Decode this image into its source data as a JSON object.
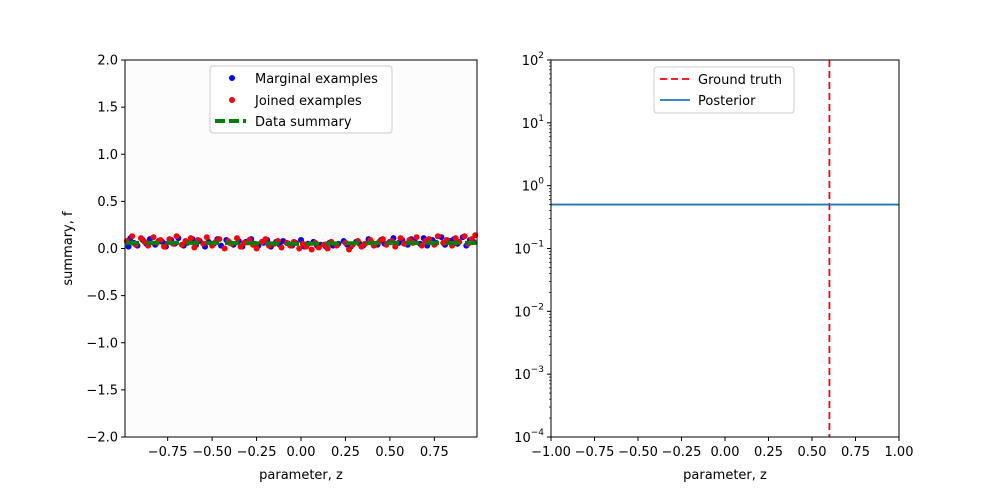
{
  "chart_data": [
    {
      "type": "scatter",
      "xlabel": "parameter, z",
      "ylabel": "summary, f",
      "xlim": [
        -0.99,
        0.99
      ],
      "ylim": [
        -2.0,
        2.0
      ],
      "x_ticks": [
        -0.75,
        -0.5,
        -0.25,
        0.0,
        0.25,
        0.5,
        0.75
      ],
      "x_tick_labels": [
        "−0.75",
        "−0.50",
        "−0.25",
        "0.00",
        "0.25",
        "0.50",
        "0.75"
      ],
      "y_ticks": [
        2.0,
        1.5,
        1.0,
        0.5,
        0.0,
        -0.5,
        -1.0,
        -1.5,
        -2.0
      ],
      "y_tick_labels": [
        "2.0",
        "1.5",
        "1.0",
        "0.5",
        "0.0",
        "−0.5",
        "−1.0",
        "−1.5",
        "−2.0"
      ],
      "grid": false,
      "legend_placement": "upper center",
      "series": [
        {
          "name": "Marginal examples",
          "kind": "points",
          "color": "#0000ff",
          "x": [
            -0.97,
            -0.96,
            -0.94,
            -0.92,
            -0.89,
            -0.87,
            -0.85,
            -0.82,
            -0.8,
            -0.78,
            -0.76,
            -0.73,
            -0.71,
            -0.69,
            -0.66,
            -0.64,
            -0.61,
            -0.59,
            -0.57,
            -0.54,
            -0.52,
            -0.49,
            -0.47,
            -0.45,
            -0.42,
            -0.4,
            -0.38,
            -0.35,
            -0.33,
            -0.31,
            -0.28,
            -0.26,
            -0.24,
            -0.21,
            -0.19,
            -0.17,
            -0.14,
            -0.12,
            -0.1,
            -0.07,
            -0.05,
            -0.03,
            0.0,
            0.02,
            0.04,
            0.07,
            0.09,
            0.11,
            0.14,
            0.16,
            0.18,
            0.21,
            0.24,
            0.26,
            0.28,
            0.31,
            0.33,
            0.35,
            0.38,
            0.4,
            0.43,
            0.45,
            0.47,
            0.5,
            0.52,
            0.55,
            0.57,
            0.6,
            0.62,
            0.64,
            0.67,
            0.69,
            0.71,
            0.74,
            0.76,
            0.79,
            0.81,
            0.84,
            0.86,
            0.88,
            0.91,
            0.93,
            0.95,
            0.97
          ],
          "y": [
            0.02,
            0.11,
            0.06,
            0.03,
            0.09,
            0.05,
            0.1,
            0.04,
            0.08,
            0.07,
            0.02,
            0.09,
            0.05,
            0.11,
            0.03,
            0.06,
            0.1,
            0.04,
            0.08,
            0.02,
            0.07,
            0.05,
            0.1,
            0.03,
            0.09,
            0.06,
            0.04,
            0.08,
            0.02,
            0.07,
            0.1,
            0.05,
            0.03,
            0.06,
            0.09,
            0.02,
            0.07,
            0.04,
            0.08,
            0.05,
            0.03,
            0.06,
            0.09,
            0.02,
            0.05,
            0.07,
            0.03,
            0.04,
            0.02,
            0.06,
            0.03,
            0.05,
            0.08,
            0.04,
            0.02,
            0.07,
            0.05,
            0.03,
            0.1,
            0.06,
            0.04,
            0.09,
            0.05,
            0.07,
            0.11,
            0.06,
            0.09,
            0.04,
            0.1,
            0.07,
            0.05,
            0.11,
            0.03,
            0.09,
            0.06,
            0.12,
            0.04,
            0.08,
            0.1,
            0.05,
            0.12,
            0.03,
            0.09,
            0.07
          ]
        },
        {
          "name": "Joined examples",
          "kind": "points",
          "color": "#ff0000",
          "x": [
            -0.98,
            -0.95,
            -0.93,
            -0.9,
            -0.88,
            -0.86,
            -0.83,
            -0.81,
            -0.79,
            -0.77,
            -0.74,
            -0.72,
            -0.7,
            -0.67,
            -0.65,
            -0.62,
            -0.6,
            -0.58,
            -0.55,
            -0.53,
            -0.5,
            -0.48,
            -0.46,
            -0.43,
            -0.41,
            -0.39,
            -0.36,
            -0.34,
            -0.32,
            -0.29,
            -0.27,
            -0.25,
            -0.22,
            -0.2,
            -0.18,
            -0.15,
            -0.13,
            -0.11,
            -0.08,
            -0.06,
            -0.04,
            -0.01,
            0.01,
            0.03,
            0.06,
            0.08,
            0.1,
            0.13,
            0.15,
            0.17,
            0.2,
            0.25,
            0.27,
            0.29,
            0.32,
            0.34,
            0.36,
            0.39,
            0.41,
            0.44,
            0.46,
            0.48,
            0.51,
            0.53,
            0.56,
            0.58,
            0.61,
            0.63,
            0.65,
            0.68,
            0.7,
            0.72,
            0.75,
            0.77,
            0.8,
            0.82,
            0.85,
            0.87,
            0.89,
            0.92,
            0.94,
            0.96,
            0.98
          ],
          "y": [
            0.08,
            0.13,
            0.04,
            0.11,
            0.07,
            0.03,
            0.12,
            0.06,
            0.09,
            0.02,
            0.1,
            0.05,
            0.13,
            0.04,
            0.08,
            0.11,
            0.01,
            0.09,
            0.05,
            0.12,
            0.03,
            0.07,
            0.1,
            0.0,
            0.08,
            0.05,
            0.11,
            0.02,
            0.06,
            0.09,
            0.04,
            0.0,
            0.07,
            0.1,
            0.03,
            0.05,
            0.08,
            0.01,
            0.06,
            0.03,
            0.07,
            0.0,
            0.05,
            0.02,
            -0.01,
            0.06,
            0.01,
            0.04,
            0.0,
            0.07,
            0.03,
            0.06,
            -0.01,
            0.04,
            0.08,
            0.02,
            0.05,
            0.09,
            0.03,
            0.07,
            0.1,
            0.04,
            0.08,
            0.02,
            0.11,
            0.05,
            0.09,
            0.06,
            0.12,
            0.03,
            0.08,
            0.1,
            0.04,
            0.13,
            0.06,
            0.09,
            0.03,
            0.11,
            0.07,
            0.13,
            0.05,
            0.1,
            0.14
          ]
        },
        {
          "name": "Data summary",
          "kind": "dashed-line",
          "color": "#008000",
          "x": [
            -0.99,
            -0.5,
            0.0,
            0.5,
            0.99
          ],
          "y": [
            0.06,
            0.06,
            0.05,
            0.06,
            0.06
          ]
        }
      ]
    },
    {
      "type": "line",
      "xlabel": "parameter, z",
      "ylabel": "",
      "xlim": [
        -1.0,
        1.0
      ],
      "ylim": [
        0.0001,
        100
      ],
      "y_scale": "log",
      "x_ticks": [
        -1.0,
        -0.75,
        -0.5,
        -0.25,
        0.0,
        0.25,
        0.5,
        0.75,
        1.0
      ],
      "x_tick_labels": [
        "−1.00",
        "−0.75",
        "−0.50",
        "−0.25",
        "0.00",
        "0.25",
        "0.50",
        "0.75",
        "1.00"
      ],
      "y_ticks": [
        {
          "value": 100,
          "base": "10",
          "exp": "2"
        },
        {
          "value": 10,
          "base": "10",
          "exp": "1"
        },
        {
          "value": 1,
          "base": "10",
          "exp": "0"
        },
        {
          "value": 0.1,
          "base": "10",
          "exp": "−1"
        },
        {
          "value": 0.01,
          "base": "10",
          "exp": "−2"
        },
        {
          "value": 0.001,
          "base": "10",
          "exp": "−3"
        },
        {
          "value": 0.0001,
          "base": "10",
          "exp": "−4"
        }
      ],
      "grid": false,
      "legend_placement": "upper center",
      "series": [
        {
          "name": "Ground truth",
          "kind": "vline",
          "style": "dashed",
          "color": "#ff0000",
          "x": 0.6
        },
        {
          "name": "Posterior",
          "kind": "line",
          "color": "#1f77b4",
          "x": [
            -1.0,
            1.0
          ],
          "y": [
            0.5,
            0.5
          ]
        }
      ]
    }
  ]
}
